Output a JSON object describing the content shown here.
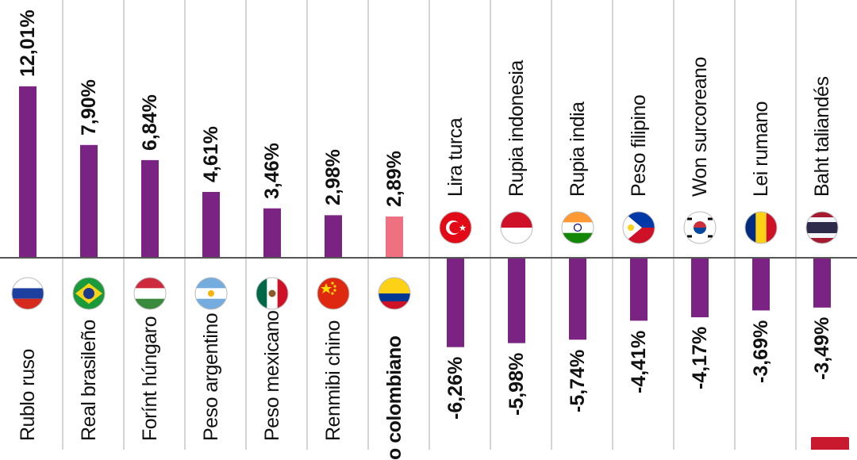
{
  "chart_data": {
    "type": "bar",
    "title": "",
    "xlabel": "",
    "ylabel": "",
    "categories": [
      "Rublo ruso",
      "Real brasileño",
      "Forínt húngaro",
      "Peso argentino",
      "Peso mexicano",
      "Renmibi chino",
      "o colombiano",
      "Lira turca",
      "Rupia indonesia",
      "Rupia india",
      "Peso filipino",
      "Won surcoreano",
      "Lei rumano",
      "Baht taliandés"
    ],
    "values": [
      12.01,
      7.9,
      6.84,
      4.61,
      3.46,
      2.98,
      2.89,
      -6.26,
      -5.98,
      -5.74,
      -4.41,
      -4.17,
      -3.69,
      -3.49
    ],
    "value_labels": [
      "12,01%",
      "7,90%",
      "6,84%",
      "4,61%",
      "3,46%",
      "2,98%",
      "2,89%",
      "-6,26%",
      "-5,98%",
      "-5,74%",
      "-4,41%",
      "-4,17%",
      "-3,69%",
      "-3,49%"
    ],
    "flags": [
      "russia-flag",
      "brazil-flag",
      "hungary-flag",
      "argentina-flag",
      "mexico-flag",
      "china-flag",
      "colombia-flag",
      "turkey-flag",
      "indonesia-flag",
      "india-flag",
      "philippines-flag",
      "south-korea-flag",
      "romania-flag",
      "thailand-flag"
    ],
    "highlight_index": 6,
    "colors": {
      "bar": "#7b2382",
      "highlight": "#ef7080",
      "axis": "#555555",
      "divider": "#aaaaaa",
      "corner_mark": "#c8192e"
    },
    "grid": false,
    "legend": "none"
  }
}
